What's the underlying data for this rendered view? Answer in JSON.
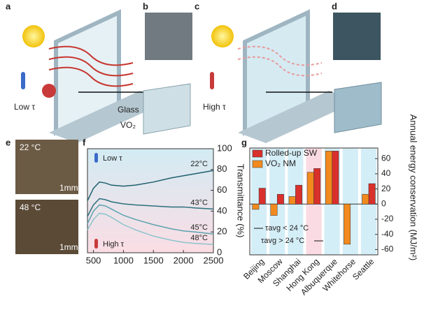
{
  "panels": {
    "a": "a",
    "b": "b",
    "c": "c",
    "d": "d",
    "e": "e",
    "low_tau": "Low τ",
    "high_tau": "High τ",
    "glass": "Glass",
    "vo2": "VO₂",
    "photo_top": {
      "temp": "22 °C",
      "scale": "1mm"
    },
    "photo_bottom": {
      "temp": "48 °C",
      "scale": "1mm"
    }
  },
  "chart_data": [
    {
      "type": "line",
      "panel": "f",
      "ylabel": "Transmittance (%)",
      "annotations": [
        "Low τ",
        "High τ"
      ],
      "x": [
        400,
        500,
        600,
        700,
        800,
        1000,
        1200,
        1500,
        1800,
        2000,
        2200,
        2500
      ],
      "series": [
        {
          "name": "22°C",
          "color": "#1f5f6e",
          "values": [
            50,
            62,
            68,
            67,
            65,
            64,
            65,
            68,
            72,
            74,
            76,
            79
          ]
        },
        {
          "name": "43°C",
          "color": "#2a6f7c",
          "values": [
            35,
            46,
            52,
            51,
            49,
            47,
            46,
            45,
            44,
            44,
            43,
            42
          ]
        },
        {
          "name": "45°C",
          "color": "#5ba3b0",
          "values": [
            28,
            40,
            46,
            45,
            42,
            36,
            32,
            27,
            23,
            21,
            20,
            18
          ]
        },
        {
          "name": "48°C",
          "color": "#8cc4cc",
          "values": [
            22,
            32,
            38,
            37,
            34,
            27,
            22,
            16,
            12,
            10,
            9,
            8
          ]
        }
      ],
      "xlim": [
        400,
        2500
      ],
      "xticks": [
        500,
        1000,
        1500,
        2000,
        2500
      ],
      "ylim": [
        0,
        100
      ],
      "yticks": [
        0,
        20,
        40,
        60,
        80,
        100
      ],
      "background": [
        "#d3ebf3",
        "#fbdde4"
      ]
    },
    {
      "type": "bar",
      "panel": "g",
      "ylabel": "Annual energy conservation (MJ/m²)",
      "categories": [
        "Beijing",
        "Moscow",
        "Shanghai",
        "Hong Kong",
        "Albuquerque",
        "Whitehorse",
        "Seattle"
      ],
      "band_colors": [
        "#d4eef7",
        "#d4eef7",
        "#d4eef7",
        "#fadbe3",
        "#d4eef7",
        "#d4eef7",
        "#d4eef7"
      ],
      "series": [
        {
          "name": "Rolled-up SW",
          "color": "#d9302c",
          "values": [
            21,
            13,
            25,
            47,
            70,
            0,
            27
          ]
        },
        {
          "name": "VO₂ NM",
          "color": "#f28a1e",
          "values": [
            -7,
            -15,
            10,
            42,
            70,
            -53,
            13
          ]
        }
      ],
      "annotations": [
        "τavg < 24 °C",
        "τavg > 24 °C"
      ],
      "ylim": [
        -67,
        74
      ],
      "yticks": [
        -60,
        -40,
        -20,
        0,
        20,
        40,
        60
      ]
    }
  ]
}
